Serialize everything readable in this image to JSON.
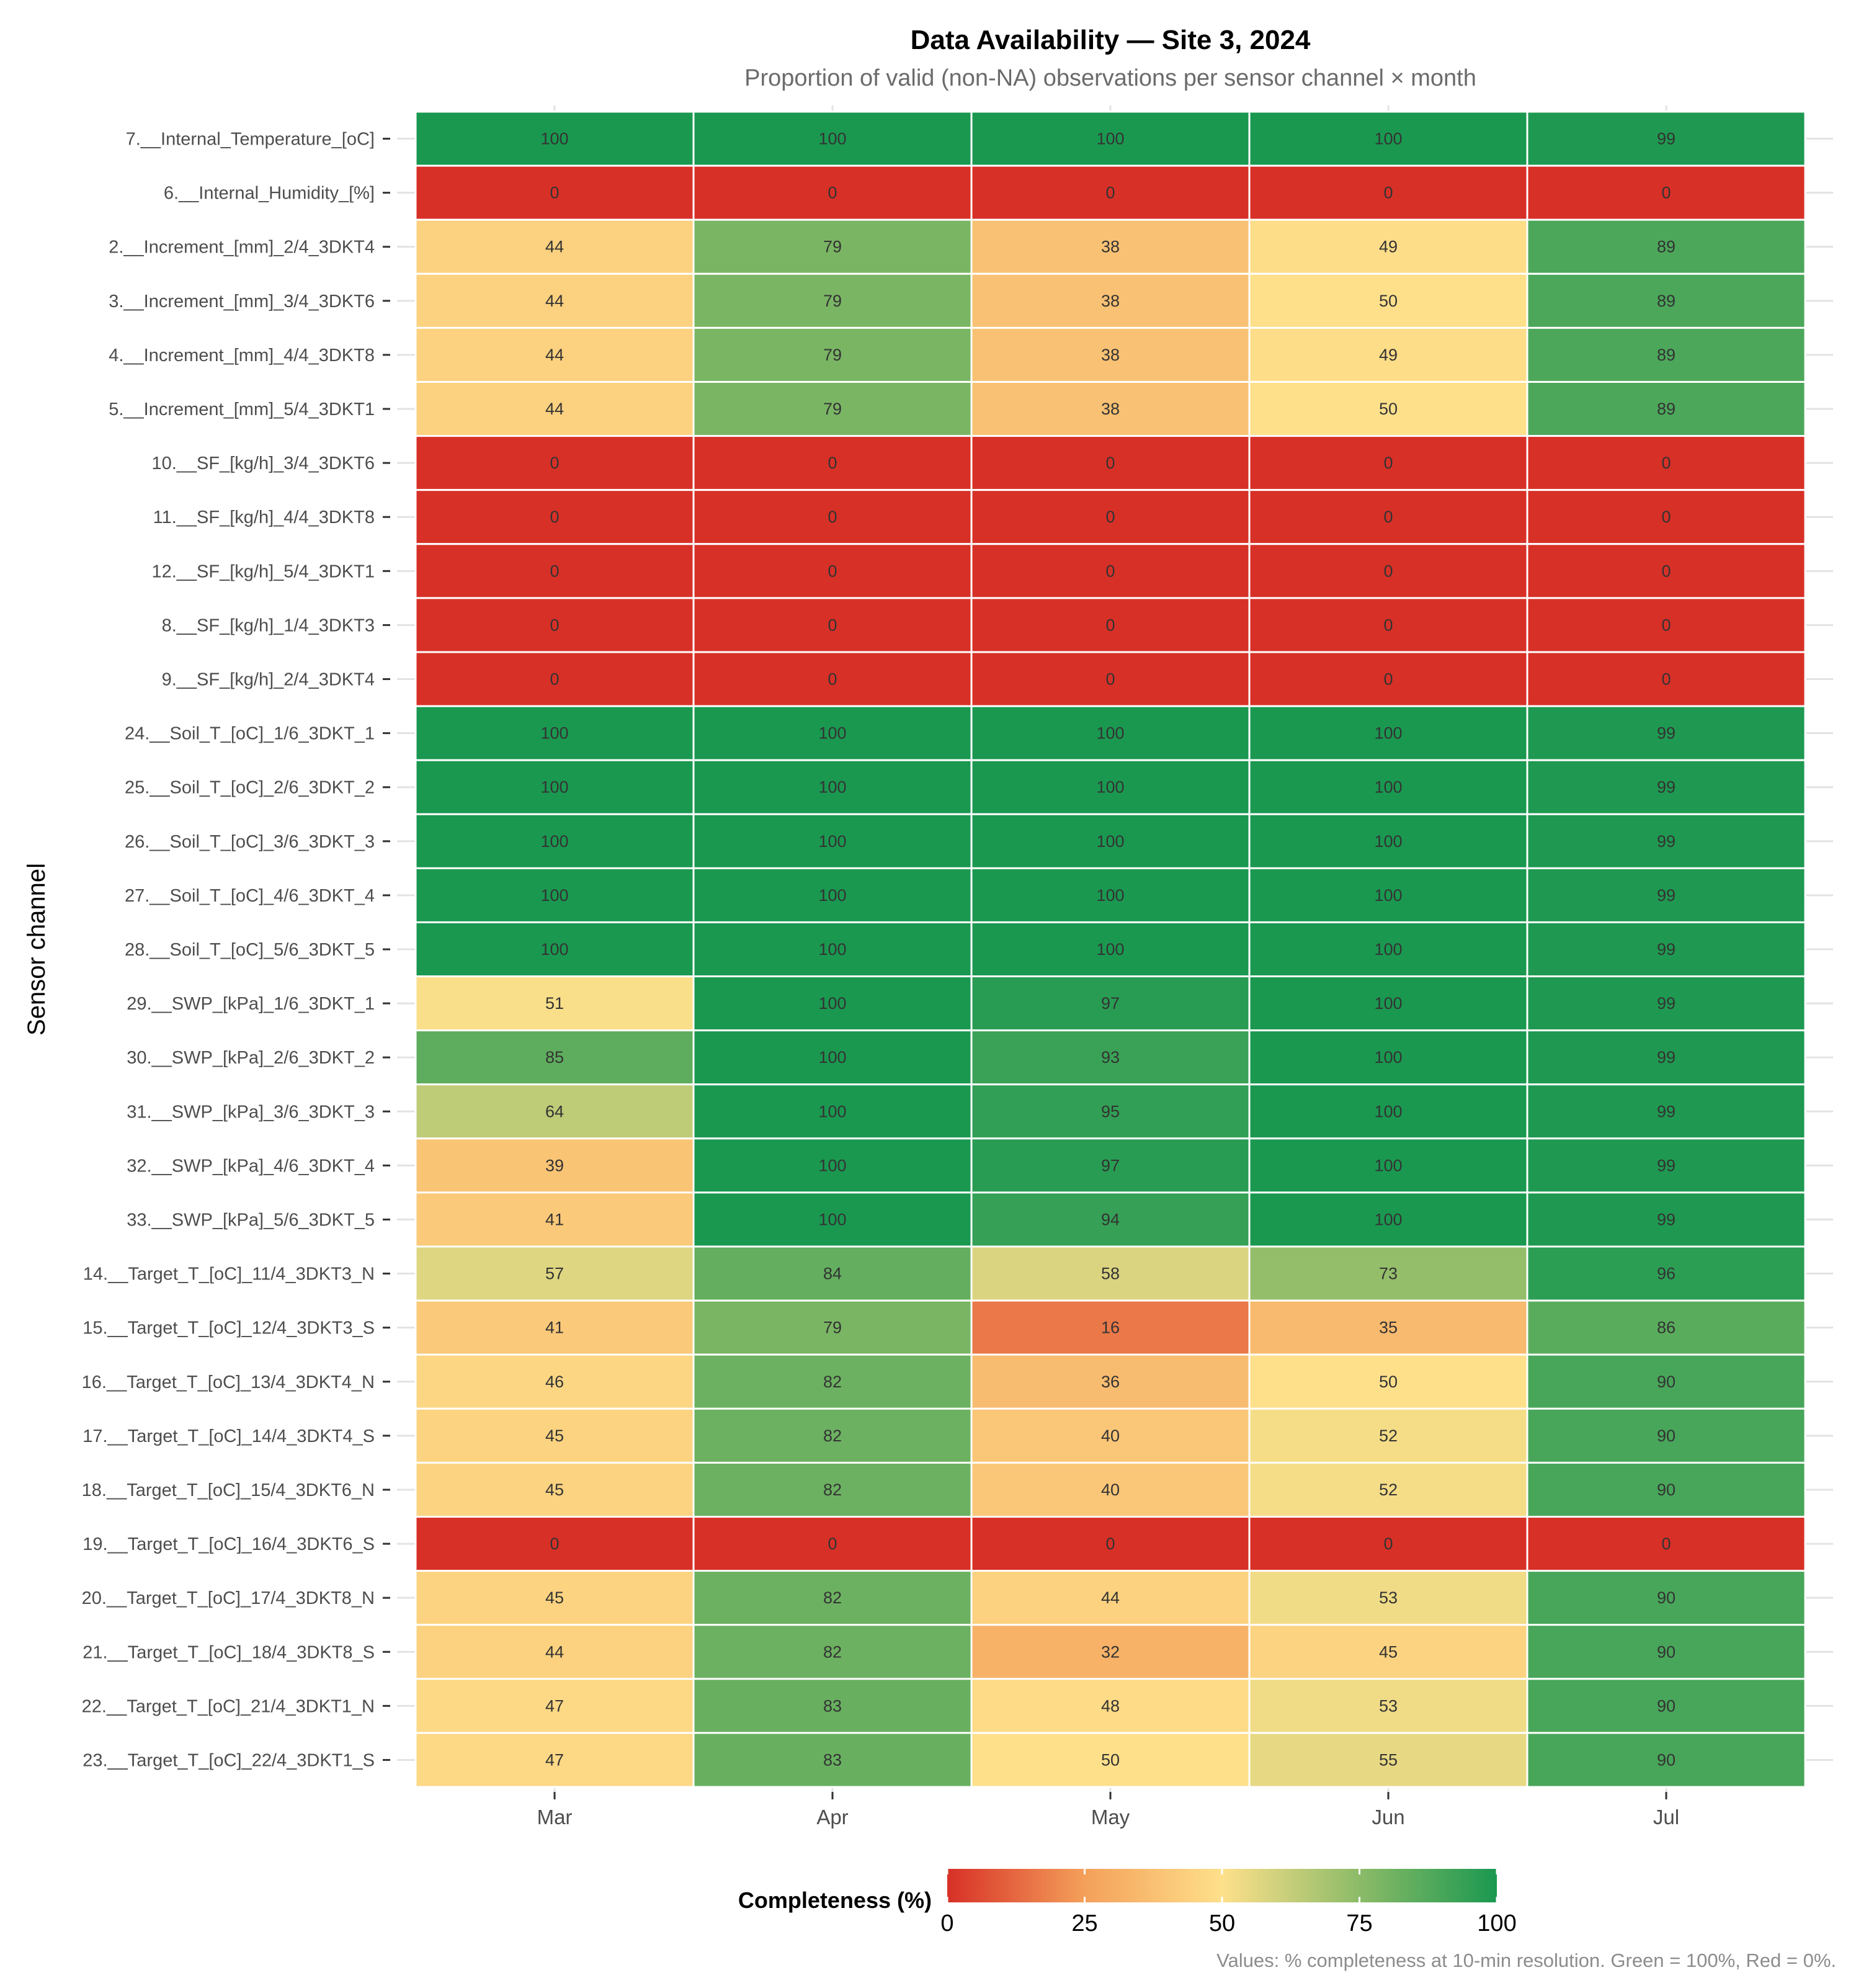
{
  "chart_data": {
    "type": "heatmap",
    "title": "Data Availability — Site 3, 2024",
    "subtitle": "Proportion of valid (non-NA) observations per sensor channel × month",
    "xlabel": "",
    "ylabel": "Sensor channel",
    "x": [
      "Mar",
      "Apr",
      "May",
      "Jun",
      "Jul"
    ],
    "y": [
      "7.__Internal_Temperature_[oC]",
      "6.__Internal_Humidity_[%]",
      "2.__Increment_[mm]_2/4_3DKT4",
      "3.__Increment_[mm]_3/4_3DKT6",
      "4.__Increment_[mm]_4/4_3DKT8",
      "5.__Increment_[mm]_5/4_3DKT1",
      "10.__SF_[kg/h]_3/4_3DKT6",
      "11.__SF_[kg/h]_4/4_3DKT8",
      "12.__SF_[kg/h]_5/4_3DKT1",
      "8.__SF_[kg/h]_1/4_3DKT3",
      "9.__SF_[kg/h]_2/4_3DKT4",
      "24.__Soil_T_[oC]_1/6_3DKT_1",
      "25.__Soil_T_[oC]_2/6_3DKT_2",
      "26.__Soil_T_[oC]_3/6_3DKT_3",
      "27.__Soil_T_[oC]_4/6_3DKT_4",
      "28.__Soil_T_[oC]_5/6_3DKT_5",
      "29.__SWP_[kPa]_1/6_3DKT_1",
      "30.__SWP_[kPa]_2/6_3DKT_2",
      "31.__SWP_[kPa]_3/6_3DKT_3",
      "32.__SWP_[kPa]_4/6_3DKT_4",
      "33.__SWP_[kPa]_5/6_3DKT_5",
      "14.__Target_T_[oC]_11/4_3DKT3_N",
      "15.__Target_T_[oC]_12/4_3DKT3_S",
      "16.__Target_T_[oC]_13/4_3DKT4_N",
      "17.__Target_T_[oC]_14/4_3DKT4_S",
      "18.__Target_T_[oC]_15/4_3DKT6_N",
      "19.__Target_T_[oC]_16/4_3DKT6_S",
      "20.__Target_T_[oC]_17/4_3DKT8_N",
      "21.__Target_T_[oC]_18/4_3DKT8_S",
      "22.__Target_T_[oC]_21/4_3DKT1_N",
      "23.__Target_T_[oC]_22/4_3DKT1_S"
    ],
    "values": [
      [
        100,
        100,
        100,
        100,
        99
      ],
      [
        0,
        0,
        0,
        0,
        0
      ],
      [
        44,
        79,
        38,
        49,
        89
      ],
      [
        44,
        79,
        38,
        50,
        89
      ],
      [
        44,
        79,
        38,
        49,
        89
      ],
      [
        44,
        79,
        38,
        50,
        89
      ],
      [
        0,
        0,
        0,
        0,
        0
      ],
      [
        0,
        0,
        0,
        0,
        0
      ],
      [
        0,
        0,
        0,
        0,
        0
      ],
      [
        0,
        0,
        0,
        0,
        0
      ],
      [
        0,
        0,
        0,
        0,
        0
      ],
      [
        100,
        100,
        100,
        100,
        99
      ],
      [
        100,
        100,
        100,
        100,
        99
      ],
      [
        100,
        100,
        100,
        100,
        99
      ],
      [
        100,
        100,
        100,
        100,
        99
      ],
      [
        100,
        100,
        100,
        100,
        99
      ],
      [
        51,
        100,
        97,
        100,
        99
      ],
      [
        85,
        100,
        93,
        100,
        99
      ],
      [
        64,
        100,
        95,
        100,
        99
      ],
      [
        39,
        100,
        97,
        100,
        99
      ],
      [
        41,
        100,
        94,
        100,
        99
      ],
      [
        57,
        84,
        58,
        73,
        96
      ],
      [
        41,
        79,
        16,
        35,
        86
      ],
      [
        46,
        82,
        36,
        50,
        90
      ],
      [
        45,
        82,
        40,
        52,
        90
      ],
      [
        45,
        82,
        40,
        52,
        90
      ],
      [
        0,
        0,
        0,
        0,
        0
      ],
      [
        45,
        82,
        44,
        53,
        90
      ],
      [
        44,
        82,
        32,
        45,
        90
      ],
      [
        47,
        83,
        48,
        53,
        90
      ],
      [
        47,
        83,
        50,
        55,
        90
      ]
    ],
    "colorscale": {
      "title": "Completeness (%)",
      "range": [
        0,
        100
      ],
      "ticks": [
        0,
        25,
        50,
        75,
        100
      ],
      "colors": [
        "#d73027",
        "#f4a05a",
        "#fee08b",
        "#8cbb68",
        "#1a9850"
      ]
    },
    "legend_position": "bottom",
    "grid": true,
    "caption": "Values: % completeness at 10-min resolution. Green = 100%, Red = 0%."
  }
}
